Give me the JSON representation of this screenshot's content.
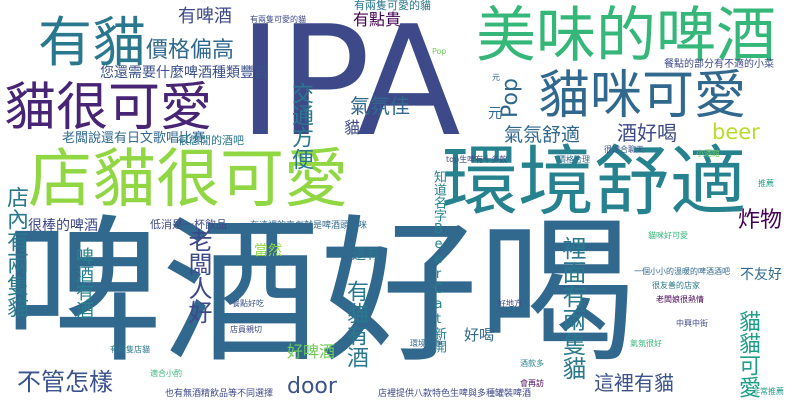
{
  "words": [
    {
      "text": "啤酒好喝",
      "color": "#31688e"
    },
    {
      "text": "IPA",
      "color": "#3e4989"
    },
    {
      "text": "店貓很可愛",
      "color": "#90d743"
    },
    {
      "text": "環境舒適",
      "color": "#26828e"
    },
    {
      "text": "美味的啤酒",
      "color": "#35b779"
    },
    {
      "text": "貓很可愛",
      "color": "#482475"
    },
    {
      "text": "貓咪可愛",
      "color": "#31688e"
    },
    {
      "text": "有貓",
      "color": "#2a788e"
    },
    {
      "text": "價格偏高",
      "color": "#31688e"
    },
    {
      "text": "有啤酒",
      "color": "#3e4989"
    },
    {
      "text": "有點貴",
      "color": "#440154"
    },
    {
      "text": "您還需要什麼啤酒種類豐富",
      "color": "#3b528b"
    },
    {
      "text": "有兩隻可愛的貓",
      "color": "#2a788e"
    },
    {
      "text": "交通方便",
      "color": "#2a788e"
    },
    {
      "text": "氣氛佳",
      "color": "#31688e"
    },
    {
      "text": "Pop",
      "color": "#31688e"
    },
    {
      "text": "氣氛舒適",
      "color": "#31688e"
    },
    {
      "text": "酒好喝",
      "color": "#3e4989"
    },
    {
      "text": "beer",
      "color": "#b5de2b"
    },
    {
      "text": "貓",
      "color": "#3e4989"
    },
    {
      "text": "老闆說還有日文歌唱比賽",
      "color": "#31688e"
    },
    {
      "text": "很棒的啤酒",
      "color": "#3e4989"
    },
    {
      "text": "店內有兩隻貓",
      "color": "#2a788e"
    },
    {
      "text": "不管怎樣",
      "color": "#3b528b"
    },
    {
      "text": "老闆人好",
      "color": "#3e4989"
    },
    {
      "text": "啤酒有酒",
      "color": "#26828e"
    },
    {
      "text": "有貓有酒",
      "color": "#2a788e"
    },
    {
      "text": "好啤酒",
      "color": "#6ece58"
    },
    {
      "text": "door",
      "color": "#3b528b"
    },
    {
      "text": "好喝",
      "color": "#31688e"
    },
    {
      "text": "這裡有貓",
      "color": "#3b528b"
    },
    {
      "text": "裡面有兩隻貓",
      "color": "#2a788e"
    },
    {
      "text": "貓貓可愛",
      "color": "#1f9e89"
    },
    {
      "text": "炸物",
      "color": "#440154"
    },
    {
      "text": "不友好",
      "color": "#31688e"
    },
    {
      "text": "當然",
      "color": "#90d743"
    },
    {
      "text": "還有",
      "color": "#2a788e"
    },
    {
      "text": "元",
      "color": "#31688e"
    },
    {
      "text": "很悠閒的酒吧",
      "color": "#2a788e"
    },
    {
      "text": "低消是一杯飲品",
      "color": "#3e4989"
    }
  ],
  "small_words": [
    {
      "text": "有兩隻可愛的貓",
      "color": "#3e4989"
    },
    {
      "text": "在這裡的喜劇就是啤酒頭貓咪",
      "color": "#31688e"
    },
    {
      "text": "店裡提供八款特色生啤與多種罐裝啤酒",
      "color": "#3e4989"
    },
    {
      "text": "Pop",
      "color": "#6ece58"
    },
    {
      "text": "top生啤有十多款",
      "color": "#3e4989"
    },
    {
      "text": "知道名字BeerCat新開",
      "color": "#26828e"
    },
    {
      "text": "元",
      "color": "#31688e"
    },
    {
      "text": "餐點的部分有不適的小菜",
      "color": "#3e4989"
    },
    {
      "text": "也有無酒精飲品等不同選擇",
      "color": "#3e4989"
    },
    {
      "text": "貓咪好可愛",
      "color": "#35b779"
    },
    {
      "text": "一個小小的溫暖的啤酒酒吧",
      "color": "#31688e"
    },
    {
      "text": "很友善的店家",
      "color": "#2a788e"
    },
    {
      "text": "中興中街",
      "color": "#3e4989"
    },
    {
      "text": "老闆娘很熱情",
      "color": "#440154"
    },
    {
      "text": "氣氛很好",
      "color": "#35b779"
    },
    {
      "text": "推薦",
      "color": "#1f9e89"
    },
    {
      "text": "很適合聊天",
      "color": "#3b528b"
    },
    {
      "text": "價格合理",
      "color": "#31688e"
    },
    {
      "text": "好地方",
      "color": "#3e4989"
    },
    {
      "text": "酒款多",
      "color": "#26828e"
    },
    {
      "text": "小酒館",
      "color": "#6ece58"
    },
    {
      "text": "店員親切",
      "color": "#3e4989"
    },
    {
      "text": "環境乾淨",
      "color": "#31688e"
    },
    {
      "text": "有兩隻店貓",
      "color": "#2a788e"
    },
    {
      "text": "餐點好吃",
      "color": "#3b528b"
    },
    {
      "text": "適合小酌",
      "color": "#35b779"
    },
    {
      "text": "會再訪",
      "color": "#440154"
    },
    {
      "text": "非常推薦",
      "color": "#1f9e89"
    }
  ]
}
